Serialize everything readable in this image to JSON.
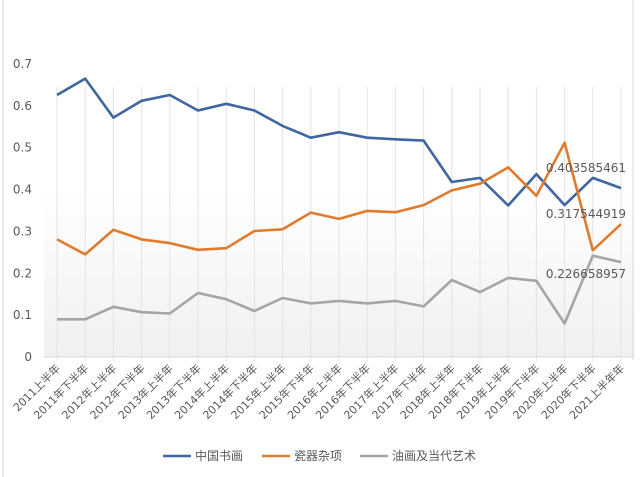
{
  "chart_data": {
    "type": "line",
    "title": "",
    "xlabel": "",
    "ylabel": "",
    "ylim": [
      0,
      0.7
    ],
    "yticks": [
      "0",
      "0.1",
      "0.2",
      "0.3",
      "0.4",
      "0.5",
      "0.6",
      "0.7"
    ],
    "grid": "vertical",
    "legend_position": "bottom",
    "categories": [
      "2011上半年",
      "2011年下半年",
      "2012年上半年",
      "2012年下半年",
      "2013年上半年",
      "2013年下半年",
      "2014年上半年",
      "2014年下半年",
      "2015年上半年",
      "2015年下半年",
      "2016年上半年",
      "2016年下半年",
      "2017年上半年",
      "2017年下半年",
      "2018年上半年",
      "2018年下半年",
      "2019年上半年",
      "2019年下半年",
      "2020年上半年",
      "2020年下半年",
      "2021上半年年"
    ],
    "series": [
      {
        "name": "中国书画",
        "color": "#3F66A0",
        "values": [
          0.626,
          0.665,
          0.572,
          0.612,
          0.626,
          0.589,
          0.605,
          0.589,
          0.552,
          0.524,
          0.537,
          0.524,
          0.52,
          0.517,
          0.418,
          0.428,
          0.362,
          0.437,
          0.363,
          0.428,
          0.403585461
        ],
        "last_label": "0.403585461"
      },
      {
        "name": "瓷器杂项",
        "color": "#E07B2E",
        "values": [
          0.281,
          0.245,
          0.304,
          0.281,
          0.272,
          0.256,
          0.26,
          0.301,
          0.305,
          0.345,
          0.33,
          0.349,
          0.346,
          0.363,
          0.398,
          0.414,
          0.453,
          0.385,
          0.512,
          0.255,
          0.317544919
        ],
        "last_label": "0.317544919"
      },
      {
        "name": "油画及当代艺术",
        "color": "#A5A5A5",
        "values": [
          0.09,
          0.09,
          0.12,
          0.107,
          0.104,
          0.153,
          0.138,
          0.11,
          0.141,
          0.128,
          0.134,
          0.128,
          0.134,
          0.121,
          0.184,
          0.155,
          0.189,
          0.182,
          0.08,
          0.242,
          0.226658957
        ],
        "last_label": "0.226658957"
      }
    ]
  }
}
